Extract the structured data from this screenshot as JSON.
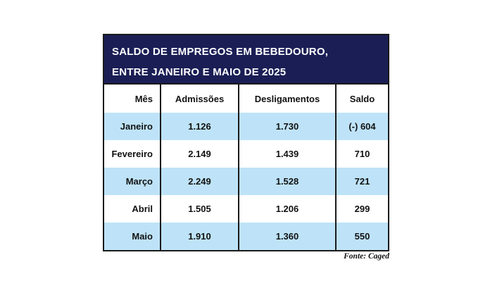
{
  "page": {
    "background_color": "#ffffff"
  },
  "table": {
    "title_lines": {
      "line1": "SALDO DE EMPREGOS EM BEBEDOURO,",
      "line2": "ENTRE JANEIRO E MAIO DE 2025"
    },
    "colors": {
      "title_bg": "#1A1E55",
      "title_text": "#ffffff",
      "row_alt": "#BEE3F8",
      "row_plain": "#ffffff",
      "border": "#1a1a1a",
      "body_text": "#111111"
    },
    "columns": [
      "Mês",
      "Admissões",
      "Desligamentos",
      "Saldo"
    ],
    "rows": [
      {
        "mes": "Janeiro",
        "admissoes": "1.126",
        "desligamentos": "1.730",
        "saldo": "(-) 604"
      },
      {
        "mes": "Fevereiro",
        "admissoes": "2.149",
        "desligamentos": "1.439",
        "saldo": "710"
      },
      {
        "mes": "Março",
        "admissoes": "2.249",
        "desligamentos": "1.528",
        "saldo": "721"
      },
      {
        "mes": "Abril",
        "admissoes": "1.505",
        "desligamentos": "1.206",
        "saldo": "299"
      },
      {
        "mes": "Maio",
        "admissoes": "1.910",
        "desligamentos": "1.360",
        "saldo": "550"
      }
    ],
    "source": "Fonte: Caged"
  },
  "chart_data": {
    "type": "table",
    "title": "SALDO DE EMPREGOS EM BEBEDOURO, ENTRE JANEIRO E MAIO DE 2025",
    "columns": [
      "Mês",
      "Admissões",
      "Desligamentos",
      "Saldo"
    ],
    "rows": [
      [
        "Janeiro",
        1126,
        1730,
        -604
      ],
      [
        "Fevereiro",
        2149,
        1439,
        710
      ],
      [
        "Março",
        2249,
        1528,
        721
      ],
      [
        "Abril",
        1505,
        1206,
        299
      ],
      [
        "Maio",
        1910,
        1360,
        550
      ]
    ],
    "source": "Fonte: Caged",
    "layout": {
      "striped_rows": true,
      "stripe_color": "#BEE3F8",
      "header_band_color": "#1A1E55"
    }
  }
}
